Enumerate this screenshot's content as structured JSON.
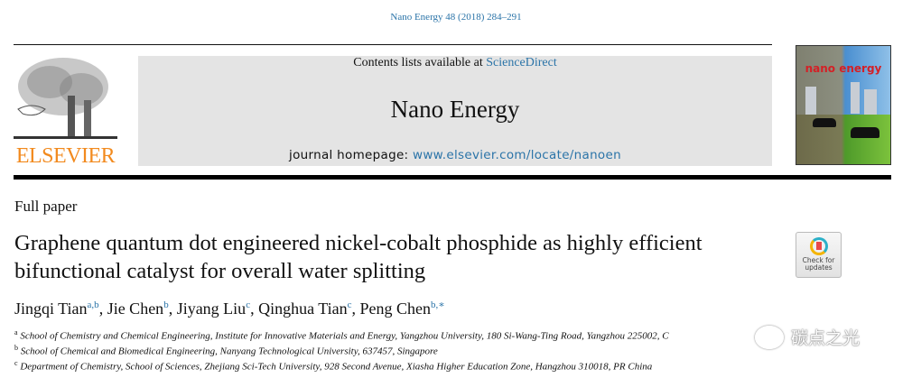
{
  "header": {
    "journal_ref": "Nano Energy 48 (2018) 284–291",
    "contents_prefix": "Contents lists available at ",
    "contents_link": "ScienceDirect",
    "journal_title": "Nano Energy",
    "homepage_prefix": "journal homepage: ",
    "homepage_link": "www.elsevier.com/locate/nanoen",
    "publisher_logo": "ELSEVIER",
    "cover_title": "nano energy"
  },
  "article": {
    "type": "Full paper",
    "title": "Graphene quantum dot engineered nickel-cobalt phosphide as highly efficient bifunctional catalyst for overall water splitting",
    "authors": [
      {
        "name": "Jingqi Tian",
        "aff": "a,b"
      },
      {
        "name": "Jie Chen",
        "aff": "b"
      },
      {
        "name": "Jiyang Liu",
        "aff": "c"
      },
      {
        "name": "Qinghua Tian",
        "aff": "c"
      },
      {
        "name": "Peng Chen",
        "aff": "b,∗"
      }
    ],
    "affiliations": [
      {
        "mark": "a",
        "text": "School of Chemistry and Chemical Engineering, Institute for Innovative Materials and Energy, Yangzhou University, 180 Si-Wang-Ting Road, Yangzhou 225002, C"
      },
      {
        "mark": "b",
        "text": "School of Chemical and Biomedical Engineering, Nanyang Technological University, 637457, Singapore"
      },
      {
        "mark": "c",
        "text": "Department of Chemistry, School of Sciences, Zhejiang Sci-Tech University, 928 Second Avenue, Xiasha Higher Education Zone, Hangzhou 310018, PR China"
      }
    ]
  },
  "check_updates": {
    "label_line1": "Check for",
    "label_line2": "updates"
  },
  "watermark": {
    "text": "碳点之光"
  }
}
